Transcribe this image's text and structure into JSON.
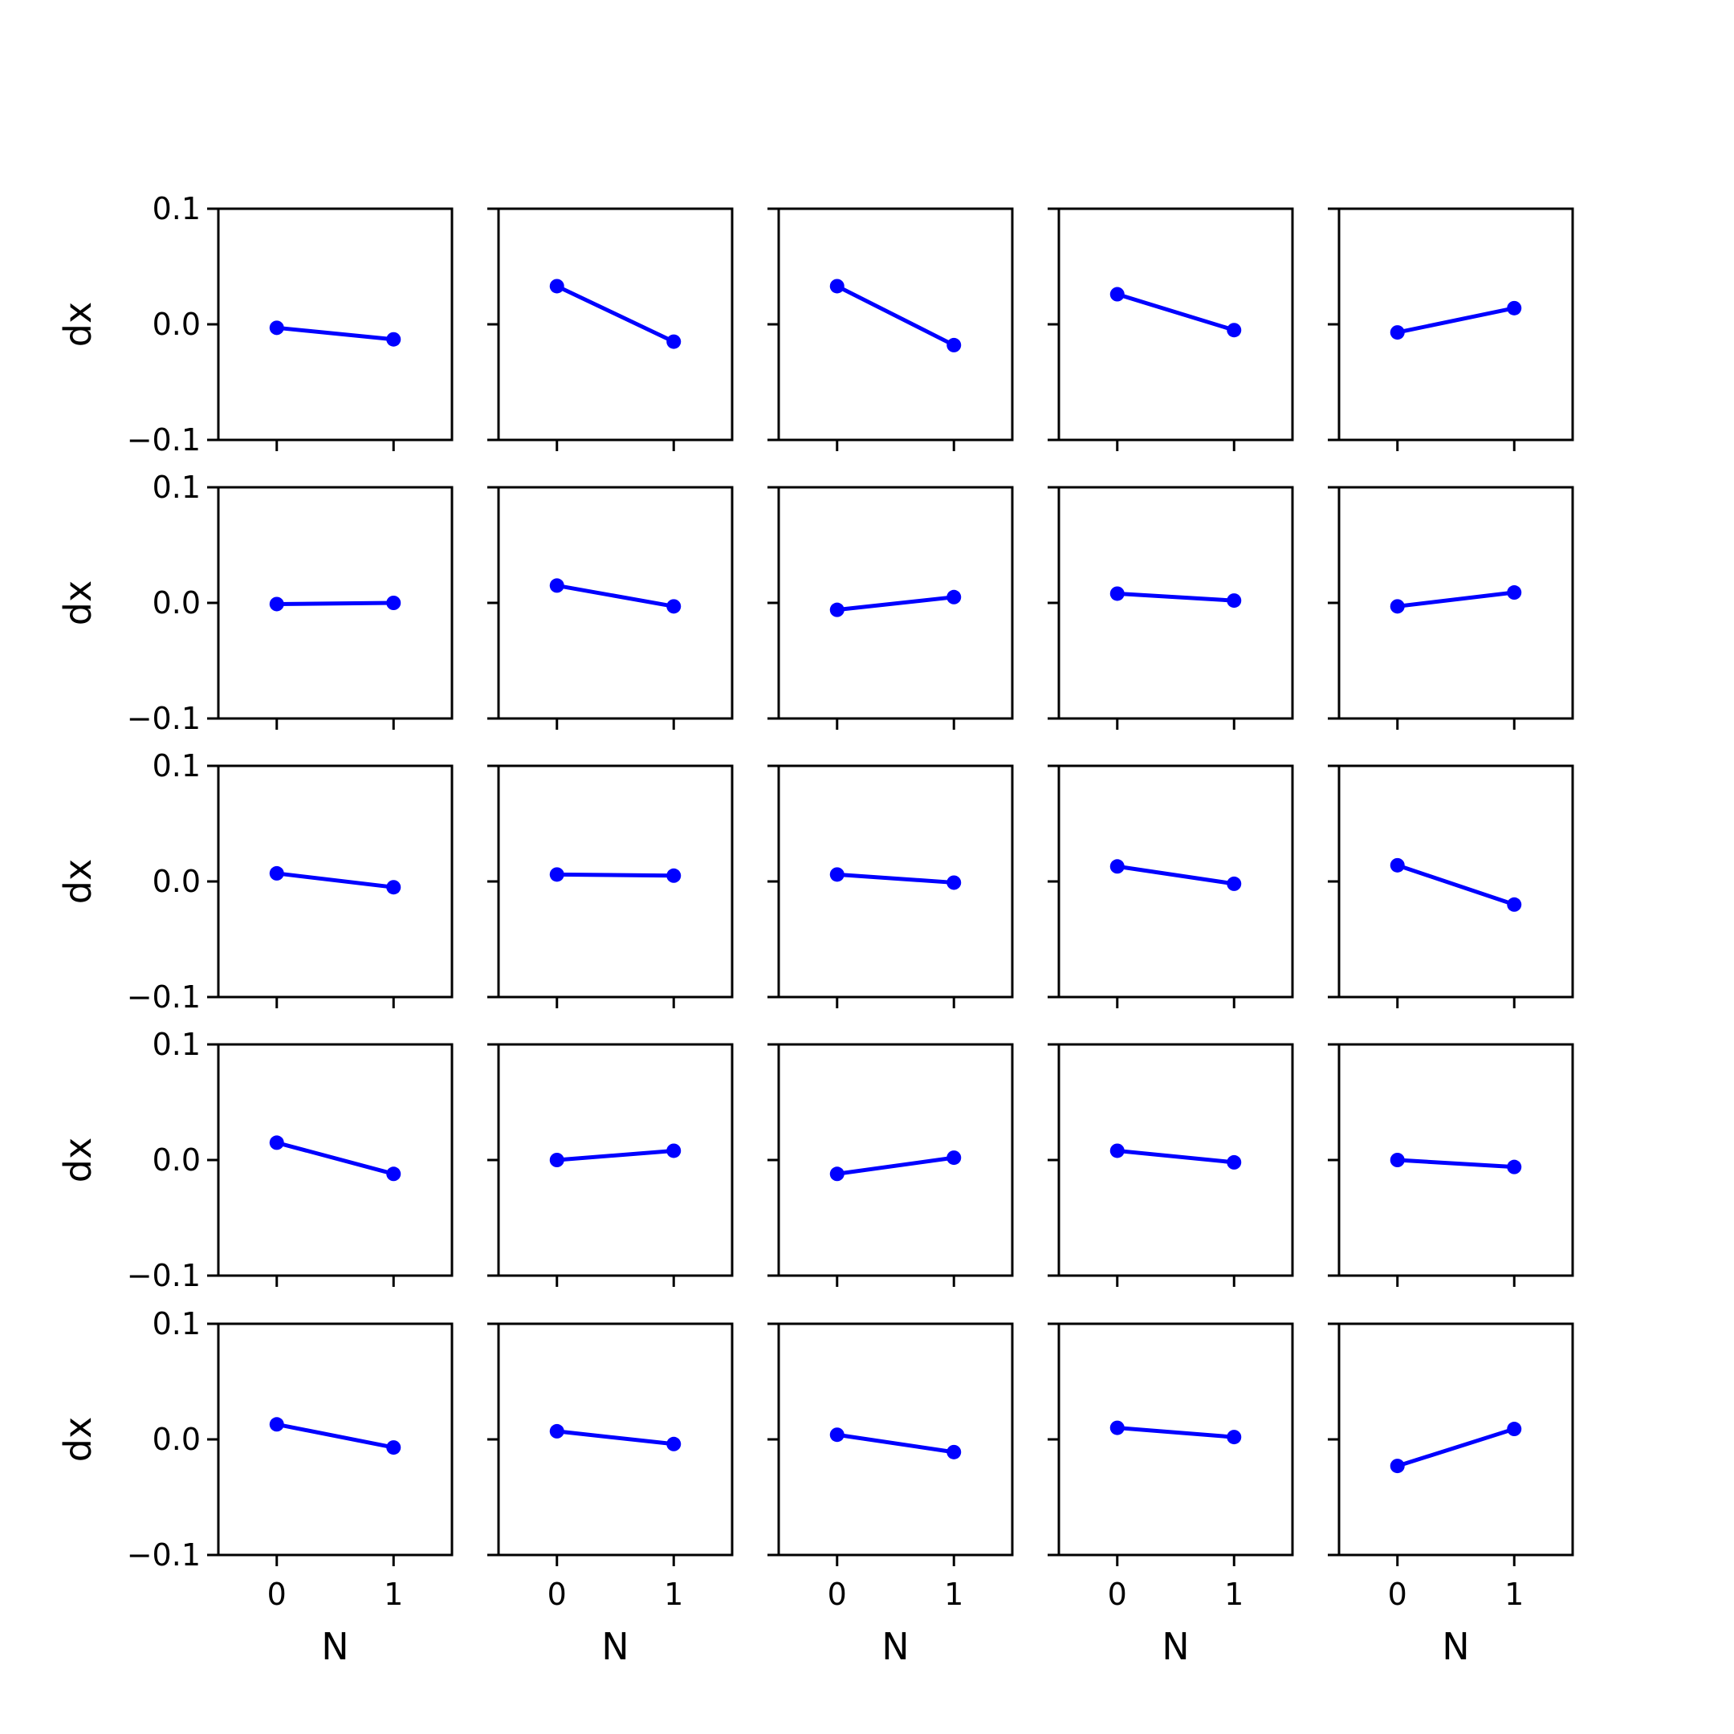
{
  "chart_data": {
    "type": "line",
    "layout": {
      "rows": 5,
      "cols": 5
    },
    "x_label": "N",
    "y_label": "dx",
    "x_ticks": [
      0,
      1
    ],
    "x_tick_labels": [
      "0",
      "1"
    ],
    "xlim": [
      -0.5,
      1.5
    ],
    "y_ticks": [
      0.1,
      0.0,
      -0.1
    ],
    "y_tick_labels": [
      "0.1",
      "0.0",
      "−0.1"
    ],
    "ylim": [
      -0.1,
      0.1
    ],
    "line_color": "#0000ff",
    "grid": false,
    "panels": [
      {
        "row": 0,
        "col": 0,
        "x": [
          0,
          1
        ],
        "y": [
          -0.003,
          -0.013
        ]
      },
      {
        "row": 0,
        "col": 1,
        "x": [
          0,
          1
        ],
        "y": [
          0.033,
          -0.015
        ]
      },
      {
        "row": 0,
        "col": 2,
        "x": [
          0,
          1
        ],
        "y": [
          0.033,
          -0.018
        ]
      },
      {
        "row": 0,
        "col": 3,
        "x": [
          0,
          1
        ],
        "y": [
          0.026,
          -0.005
        ]
      },
      {
        "row": 0,
        "col": 4,
        "x": [
          0,
          1
        ],
        "y": [
          -0.007,
          0.014
        ]
      },
      {
        "row": 1,
        "col": 0,
        "x": [
          0,
          1
        ],
        "y": [
          -0.001,
          0.0
        ]
      },
      {
        "row": 1,
        "col": 1,
        "x": [
          0,
          1
        ],
        "y": [
          0.015,
          -0.003
        ]
      },
      {
        "row": 1,
        "col": 2,
        "x": [
          0,
          1
        ],
        "y": [
          -0.006,
          0.005
        ]
      },
      {
        "row": 1,
        "col": 3,
        "x": [
          0,
          1
        ],
        "y": [
          0.008,
          0.002
        ]
      },
      {
        "row": 1,
        "col": 4,
        "x": [
          0,
          1
        ],
        "y": [
          -0.003,
          0.009
        ]
      },
      {
        "row": 2,
        "col": 0,
        "x": [
          0,
          1
        ],
        "y": [
          0.007,
          -0.005
        ]
      },
      {
        "row": 2,
        "col": 1,
        "x": [
          0,
          1
        ],
        "y": [
          0.006,
          0.005
        ]
      },
      {
        "row": 2,
        "col": 2,
        "x": [
          0,
          1
        ],
        "y": [
          0.006,
          -0.001
        ]
      },
      {
        "row": 2,
        "col": 3,
        "x": [
          0,
          1
        ],
        "y": [
          0.013,
          -0.002
        ]
      },
      {
        "row": 2,
        "col": 4,
        "x": [
          0,
          1
        ],
        "y": [
          0.014,
          -0.02
        ]
      },
      {
        "row": 3,
        "col": 0,
        "x": [
          0,
          1
        ],
        "y": [
          0.015,
          -0.012
        ]
      },
      {
        "row": 3,
        "col": 1,
        "x": [
          0,
          1
        ],
        "y": [
          0.0,
          0.008
        ]
      },
      {
        "row": 3,
        "col": 2,
        "x": [
          0,
          1
        ],
        "y": [
          -0.012,
          0.002
        ]
      },
      {
        "row": 3,
        "col": 3,
        "x": [
          0,
          1
        ],
        "y": [
          0.008,
          -0.002
        ]
      },
      {
        "row": 3,
        "col": 4,
        "x": [
          0,
          1
        ],
        "y": [
          0.0,
          -0.006
        ]
      },
      {
        "row": 4,
        "col": 0,
        "x": [
          0,
          1
        ],
        "y": [
          0.013,
          -0.007
        ]
      },
      {
        "row": 4,
        "col": 1,
        "x": [
          0,
          1
        ],
        "y": [
          0.007,
          -0.004
        ]
      },
      {
        "row": 4,
        "col": 2,
        "x": [
          0,
          1
        ],
        "y": [
          0.004,
          -0.011
        ]
      },
      {
        "row": 4,
        "col": 3,
        "x": [
          0,
          1
        ],
        "y": [
          0.01,
          0.002
        ]
      },
      {
        "row": 4,
        "col": 4,
        "x": [
          0,
          1
        ],
        "y": [
          -0.023,
          0.009
        ]
      }
    ]
  }
}
